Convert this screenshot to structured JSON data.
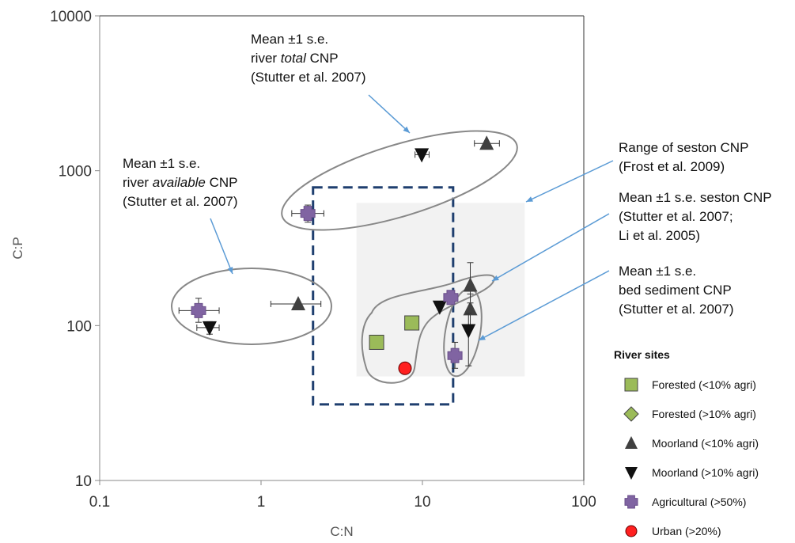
{
  "chart_data": {
    "type": "scatter",
    "xlabel": "C:N",
    "ylabel": "C:P",
    "xscale": "log",
    "yscale": "log",
    "xlim": [
      0.1,
      100
    ],
    "ylim": [
      10,
      10000
    ],
    "x_ticks": [
      "0.1",
      "1",
      "10",
      "100"
    ],
    "y_ticks": [
      "10",
      "100",
      "1000",
      "10000"
    ],
    "legend_title": "River sites",
    "legend_position": "right",
    "series": [
      {
        "name": "Forested (<10% agri)",
        "marker": "square",
        "color": "#9bbb59",
        "points": [
          {
            "x": 5.2,
            "y": 78
          },
          {
            "x": 8.6,
            "y": 104
          }
        ]
      },
      {
        "name": "Forested (>10% agri)",
        "marker": "diamond",
        "color": "#9bbb59",
        "points": []
      },
      {
        "name": "Moorland (<10% agri)",
        "marker": "triangle-up",
        "color": "#404040",
        "points": [
          {
            "x": 25,
            "y": 1500,
            "xerr": [
              21,
              30
            ]
          },
          {
            "x": 1.7,
            "y": 138,
            "xerr": [
              1.15,
              2.35
            ]
          },
          {
            "x": 19.8,
            "y": 182,
            "yerr": [
              140,
              255
            ]
          },
          {
            "x": 19.8,
            "y": 128,
            "yerr": [
              100,
              160
            ]
          }
        ]
      },
      {
        "name": "Moorland (>10% agri)",
        "marker": "triangle-down",
        "color": "#111111",
        "points": [
          {
            "x": 9.9,
            "y": 1270,
            "xerr": [
              9.0,
              11.0
            ]
          },
          {
            "x": 0.48,
            "y": 97,
            "xerr": [
              0.4,
              0.55
            ],
            "yerr": [
              88,
              106
            ]
          },
          {
            "x": 12.8,
            "y": 132
          },
          {
            "x": 19.3,
            "y": 93,
            "yerr": [
              55,
              120
            ]
          }
        ]
      },
      {
        "name": "Agricultural (>50%)",
        "marker": "plus",
        "color": "#8064a2",
        "points": [
          {
            "x": 1.95,
            "y": 530,
            "xerr": [
              1.55,
              2.45
            ],
            "yerr": [
              465,
              600
            ]
          },
          {
            "x": 0.41,
            "y": 125,
            "xerr": [
              0.31,
              0.55
            ],
            "yerr": [
              105,
              150
            ]
          },
          {
            "x": 15,
            "y": 152
          },
          {
            "x": 15.9,
            "y": 64,
            "yerr": [
              53,
              78
            ]
          }
        ]
      },
      {
        "name": "Urban (>20%)",
        "marker": "circle",
        "color": "#ff2020",
        "points": [
          {
            "x": 7.8,
            "y": 53
          }
        ]
      }
    ],
    "regions": [
      {
        "kind": "shaded-rect",
        "color": "#f2f2f2",
        "x": [
          3.9,
          43
        ],
        "y": [
          47,
          620
        ]
      },
      {
        "kind": "dashed-rect",
        "color": "#1f3f6f",
        "x": [
          2.1,
          15.5
        ],
        "y": [
          31,
          780
        ]
      }
    ],
    "annotations": [
      {
        "lines": [
          "Mean ±1 s.e.",
          "river |total| CNP",
          "(Stutter et al. 2007)"
        ]
      },
      {
        "lines": [
          "Mean ±1 s.e.",
          "river |available| CNP",
          "(Stutter et al. 2007)"
        ]
      },
      {
        "lines": [
          "Range of seston CNP",
          "(Frost et al. 2009)"
        ]
      },
      {
        "lines": [
          "Mean ±1 s.e. seston CNP",
          "(Stutter et al. 2007;",
          "Li et al. 2005)"
        ]
      },
      {
        "lines": [
          "Mean ±1 s.e.",
          "bed sediment CNP",
          "(Stutter et al. 2007)"
        ]
      }
    ]
  }
}
